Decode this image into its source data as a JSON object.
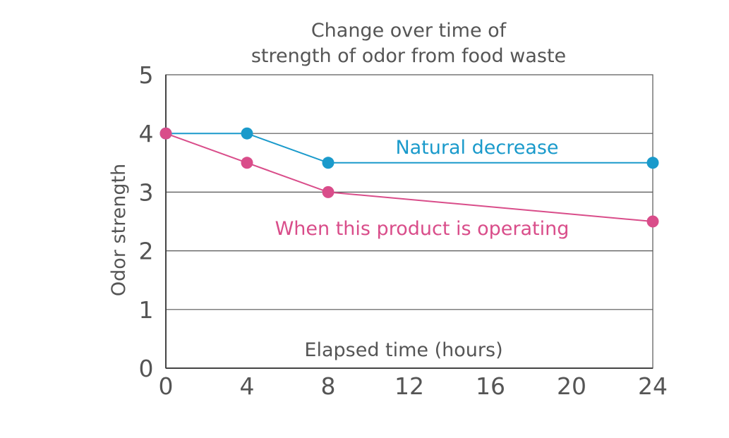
{
  "chart_data": {
    "type": "line",
    "title_lines": [
      "Change over time of",
      "strength of odor from food waste"
    ],
    "xlabel": "Elapsed time (hours)",
    "ylabel": "Odor strength",
    "xlim": [
      0,
      24
    ],
    "ylim": [
      0,
      5
    ],
    "xticks": [
      0,
      4,
      8,
      12,
      16,
      20,
      24
    ],
    "yticks": [
      0,
      1,
      2,
      3,
      4,
      5
    ],
    "grid": "horizontal",
    "series": [
      {
        "name": "Natural decrease",
        "color": "#1a9acb",
        "x": [
          0,
          4,
          8,
          24
        ],
        "y": [
          4,
          4,
          3.5,
          3.5
        ]
      },
      {
        "name": "When this product is operating",
        "color": "#d94d8a",
        "x": [
          0,
          4,
          8,
          24
        ],
        "y": [
          4,
          3.5,
          3,
          2.5
        ]
      }
    ]
  }
}
